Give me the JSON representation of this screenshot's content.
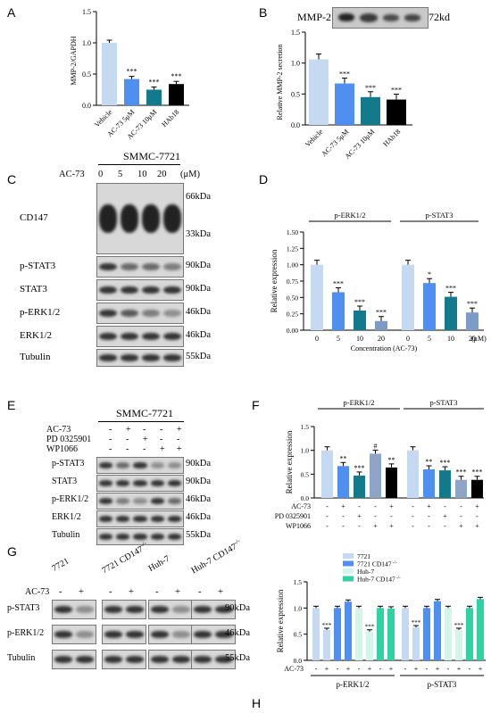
{
  "panels": {
    "A": "A",
    "B": "B",
    "C": "C",
    "D": "D",
    "E": "E",
    "F": "F",
    "G": "G",
    "H": "H"
  },
  "colors": {
    "vehicle": "#c5d9f1",
    "ac5": "#4f8ff0",
    "ac10": "#137a8c",
    "hab18": "#000000",
    "d_light": "#c5d9f1",
    "d_mid": "#4f8ff0",
    "d_teal": "#137a8c",
    "d_grey": "#7d9bc7",
    "f_grey": "#8fa5c8",
    "h_7721": "#c5d9f1",
    "h_7721ko": "#4f8ff0",
    "h_huh7": "#d4f5ea",
    "h_huh7ko": "#2fd2a0"
  },
  "panelA": {
    "ylabel": "MMP-2/GAPDH",
    "sig": "***",
    "chart_data": {
      "type": "bar",
      "categories": [
        "Vehicle",
        "AC-73 5μM",
        "AC-73 10μM",
        "HAb18"
      ],
      "values": [
        1.0,
        0.42,
        0.25,
        0.34
      ],
      "ylim": [
        0,
        1.5
      ],
      "yticks": [
        "0.0",
        "0.5",
        "1.0",
        "1.5"
      ]
    }
  },
  "panelB": {
    "blot_label": "MMP-2",
    "kd": "72kd",
    "ylabel": "Relative MMP-2 secretion",
    "sig": "***",
    "chart_data": {
      "type": "bar",
      "categories": [
        "Vehicle",
        "AC-73 5μM",
        "AC-73 10μM",
        "HAb18"
      ],
      "values": [
        1.06,
        0.67,
        0.45,
        0.41
      ],
      "ylim": [
        0,
        1.5
      ],
      "yticks": [
        "0.0",
        "0.5",
        "1.0",
        "1.5"
      ]
    }
  },
  "panelC": {
    "cell": "SMMC-7721",
    "treat": "AC-73",
    "doses": [
      "0",
      "5",
      "10",
      "20"
    ],
    "unit": "(μM)",
    "rows": [
      {
        "label": "CD147",
        "kda": "66kDa",
        "kda2": "33kDa"
      },
      {
        "label": "p-STAT3",
        "kda": "90kDa"
      },
      {
        "label": "STAT3",
        "kda": "90kDa"
      },
      {
        "label": "p-ERK1/2",
        "kda": "46kDa"
      },
      {
        "label": "ERK1/2",
        "kda": "46kDa"
      },
      {
        "label": "Tubulin",
        "kda": "55kDa"
      }
    ]
  },
  "panelD": {
    "ylabel": "Relative expression",
    "xlabel": "Concentration (AC-73)",
    "unit": "(μM)",
    "groups": [
      "p-ERK1/2",
      "p-STAT3"
    ],
    "sig_erk": [
      "",
      "***",
      "***",
      "***"
    ],
    "sig_stat": [
      "",
      "*",
      "***",
      "***"
    ],
    "chart_data": {
      "type": "bar",
      "categories": [
        "0",
        "5",
        "10",
        "20",
        "0",
        "5",
        "10",
        "20"
      ],
      "values": [
        1.0,
        0.58,
        0.3,
        0.14,
        1.0,
        0.72,
        0.51,
        0.27
      ],
      "ylim": [
        0,
        1.5
      ],
      "yticks": [
        "0.00",
        "0.25",
        "0.50",
        "0.75",
        "1.00",
        "1.25",
        "1.50"
      ]
    }
  },
  "panelE": {
    "cell": "SMMC-7721",
    "treatments": [
      "AC-73",
      "PD 0325901",
      "WP1066"
    ],
    "signs": [
      [
        "-",
        "+",
        "-",
        "-",
        "+"
      ],
      [
        "-",
        "-",
        "+",
        "-",
        "-"
      ],
      [
        "-",
        "-",
        "-",
        "+",
        "+"
      ]
    ],
    "rows": [
      {
        "label": "p-STAT3",
        "kda": "90kDa"
      },
      {
        "label": "STAT3",
        "kda": "90kDa"
      },
      {
        "label": "p-ERK1/2",
        "kda": "46kDa"
      },
      {
        "label": "ERK1/2",
        "kda": "46kDa"
      },
      {
        "label": "Tubulin",
        "kda": "55kDa"
      }
    ]
  },
  "panelF": {
    "ylabel": "Relative expression",
    "groups": [
      "p-ERK1/2",
      "p-STAT3"
    ],
    "treatments": [
      "AC-73",
      "PD 0325901",
      "WP1066"
    ],
    "signs": [
      [
        "-",
        "+",
        "-",
        "-",
        "+"
      ],
      [
        "-",
        "-",
        "+",
        "-",
        "-"
      ],
      [
        "-",
        "-",
        "-",
        "+",
        "+"
      ]
    ],
    "sig_erk": [
      "",
      "**",
      "***",
      "#",
      "**"
    ],
    "sig_stat": [
      "",
      "**",
      "***",
      "***",
      "***"
    ],
    "chart_data": {
      "type": "bar",
      "values": [
        1.0,
        0.67,
        0.47,
        0.93,
        0.64,
        1.0,
        0.6,
        0.58,
        0.38,
        0.38
      ],
      "ylim": [
        0,
        1.5
      ],
      "yticks": [
        "0.0",
        "0.5",
        "1.0",
        "1.5"
      ]
    }
  },
  "panelG": {
    "groups": [
      "7721",
      "7721 CD147",
      "Huh-7",
      "Huh-7 CD147"
    ],
    "ko_sup": "-/-",
    "treat": "AC-73",
    "signs": [
      "-",
      "+"
    ],
    "rows": [
      {
        "label": "p-STAT3",
        "kda": "90kDa"
      },
      {
        "label": "p-ERK1/2",
        "kda": "46kDa"
      },
      {
        "label": "Tubulin",
        "kda": "55kDa"
      }
    ]
  },
  "panelH": {
    "ylabel": "Relative expression",
    "treat": "AC-73",
    "groups": [
      "p-ERK1/2",
      "p-STAT3"
    ],
    "signs": [
      "-",
      "+",
      "-",
      "+",
      "-",
      "+",
      "-",
      "+"
    ],
    "legend": [
      "7721",
      "7721 CD147",
      "Huh-7",
      "Huh-7 CD147"
    ],
    "ko_sup": "-/-",
    "sig": "***",
    "chart_data": {
      "type": "bar",
      "values": [
        1.0,
        0.58,
        1.0,
        1.12,
        1.0,
        0.55,
        1.0,
        0.99,
        1.0,
        0.63,
        1.0,
        1.13,
        1.0,
        0.58,
        1.0,
        1.17
      ],
      "ylim": [
        0,
        1.5
      ],
      "yticks": [
        "0.0",
        "0.5",
        "1.0",
        "1.5"
      ]
    }
  }
}
